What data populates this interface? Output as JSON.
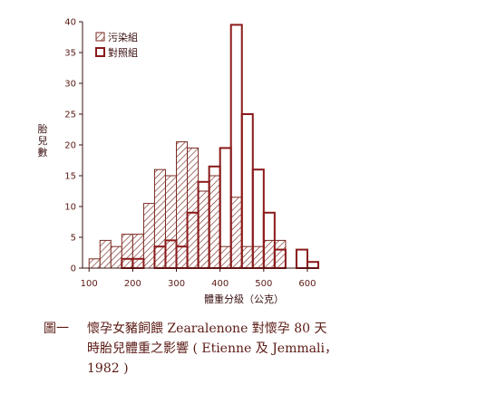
{
  "chart_data": {
    "type": "bar",
    "title": "",
    "xlabel": "體重分級（公克）",
    "ylabel": "胎兒數",
    "xlim": [
      85,
      625
    ],
    "ylim": [
      0,
      40
    ],
    "x_ticks": [
      100,
      200,
      300,
      400,
      500,
      600
    ],
    "y_ticks": [
      0,
      5,
      10,
      15,
      20,
      25,
      30,
      35,
      40
    ],
    "bin_width": 25,
    "legend_placement": "top-left",
    "series": [
      {
        "name": "污染組",
        "pattern": "hatched",
        "color": "#7a2a22",
        "bins": [
          100,
          125,
          150,
          175,
          200,
          225,
          250,
          275,
          300,
          325,
          350,
          375,
          400,
          425,
          450,
          475,
          500,
          525
        ],
        "values": [
          1.5,
          4.5,
          3.5,
          5.5,
          5.5,
          10.5,
          16,
          15,
          20.5,
          19.5,
          12.5,
          15,
          3.5,
          11.5,
          3.5,
          3.5,
          4.5,
          4.5
        ]
      },
      {
        "name": "對照組",
        "pattern": "outline",
        "color": "#8a1a1a",
        "bins": [
          175,
          200,
          250,
          275,
          300,
          325,
          350,
          375,
          400,
          425,
          450,
          475,
          500,
          525,
          575,
          600
        ],
        "values": [
          1.5,
          1.5,
          3.5,
          4.5,
          3.5,
          9,
          14,
          16.5,
          19.5,
          39.5,
          25,
          16,
          9,
          3,
          3,
          1
        ]
      }
    ]
  },
  "caption": {
    "label": "圖一",
    "line1": "懷孕女豬飼餵 Zearalenone 對懷孕 80 天",
    "line2": "時胎兒體重之影響 ( Etienne  及 Jemmali，",
    "line3": "1982 )"
  }
}
